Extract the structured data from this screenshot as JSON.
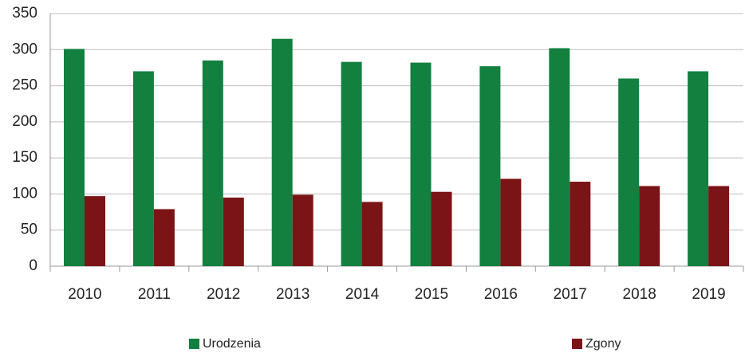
{
  "chart_data": {
    "type": "bar",
    "categories": [
      "2010",
      "2011",
      "2012",
      "2013",
      "2014",
      "2015",
      "2016",
      "2017",
      "2018",
      "2019"
    ],
    "series": [
      {
        "name": "Urodzenia",
        "color": "#138040",
        "values": [
          301,
          270,
          285,
          315,
          283,
          282,
          277,
          302,
          260,
          270
        ]
      },
      {
        "name": "Zgony",
        "color": "#7b1416",
        "values": [
          97,
          79,
          95,
          99,
          89,
          103,
          121,
          117,
          111,
          111
        ]
      }
    ],
    "ylim": [
      0,
      350
    ],
    "yticks": [
      0,
      50,
      100,
      150,
      200,
      250,
      300,
      350
    ],
    "grid": true,
    "legend": "bottom"
  }
}
